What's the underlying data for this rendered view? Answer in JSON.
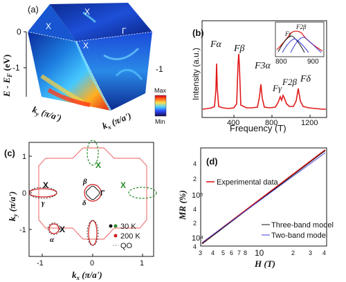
{
  "panels": {
    "a": {
      "label": "(a)",
      "ylabel": "E - E",
      "ylabel_sub": "F",
      "ylabel_unit": " (eV)",
      "yticks": [
        "0",
        "-1"
      ],
      "right_tick": "-1",
      "top_labels": [
        "X",
        "X",
        "X",
        "Γ"
      ],
      "ky_label": "k",
      "ky_sub": "y",
      "ky_unit": " (π/a')",
      "kx_label": "k",
      "kx_sub": "x",
      "kx_unit": " (π/a')",
      "colorbar": {
        "max": "Max",
        "min": "Min",
        "colors": [
          "#1a0a4a",
          "#2a4dff",
          "#4fd3ff",
          "#ffe14a",
          "#ff5a1a",
          "#d9001c"
        ]
      }
    },
    "b": {
      "label": "(b)",
      "ylabel": "Intensity (a.u.)",
      "xlabel": "Frequency (T)",
      "xticks": [
        "400",
        "800",
        "1200"
      ],
      "peaks": [
        "Fα",
        "Fβ",
        "F3α",
        "Fγ",
        "F2β",
        "Fδ"
      ],
      "inset": {
        "xticks": [
          "800",
          "900"
        ],
        "labels": [
          "Fγ",
          "F2β"
        ]
      }
    },
    "c": {
      "label": "(c)",
      "ylabel": "k",
      "ylabel_sub": "y",
      "ylabel_unit": " (π/a')",
      "xlabel": "k",
      "xlabel_sub": "x",
      "xlabel_unit": " (π/a')",
      "xticks": [
        "-1",
        "0",
        "1"
      ],
      "yticks": [
        "1",
        "0",
        "-1"
      ],
      "points": [
        "X",
        "X",
        "X",
        "X",
        "Γ"
      ],
      "pockets": [
        "β",
        "δ",
        "γ",
        "α"
      ],
      "legend": [
        {
          "label": "30 K",
          "color": "#2a8a2a"
        },
        {
          "label": "200 K",
          "color": "#d01818"
        },
        {
          "label": "QO",
          "color": "#888888"
        }
      ]
    },
    "d": {
      "label": "(d)",
      "ylabel": "MR (%)",
      "xlabel": "H (T)",
      "xticks": [
        "3",
        "4",
        "5",
        "6",
        "7",
        "8",
        "10",
        "2",
        "3",
        "4"
      ],
      "yticks": [
        "10⁵",
        "10⁴"
      ],
      "ylabel_extra": [
        "4",
        "2",
        "4",
        "2",
        "4"
      ],
      "legend": [
        "Experimental data",
        "Three-band model",
        "Two-band model"
      ],
      "legend_colors": [
        "#e01818",
        "#111111",
        "#3a3ad8"
      ]
    }
  }
}
